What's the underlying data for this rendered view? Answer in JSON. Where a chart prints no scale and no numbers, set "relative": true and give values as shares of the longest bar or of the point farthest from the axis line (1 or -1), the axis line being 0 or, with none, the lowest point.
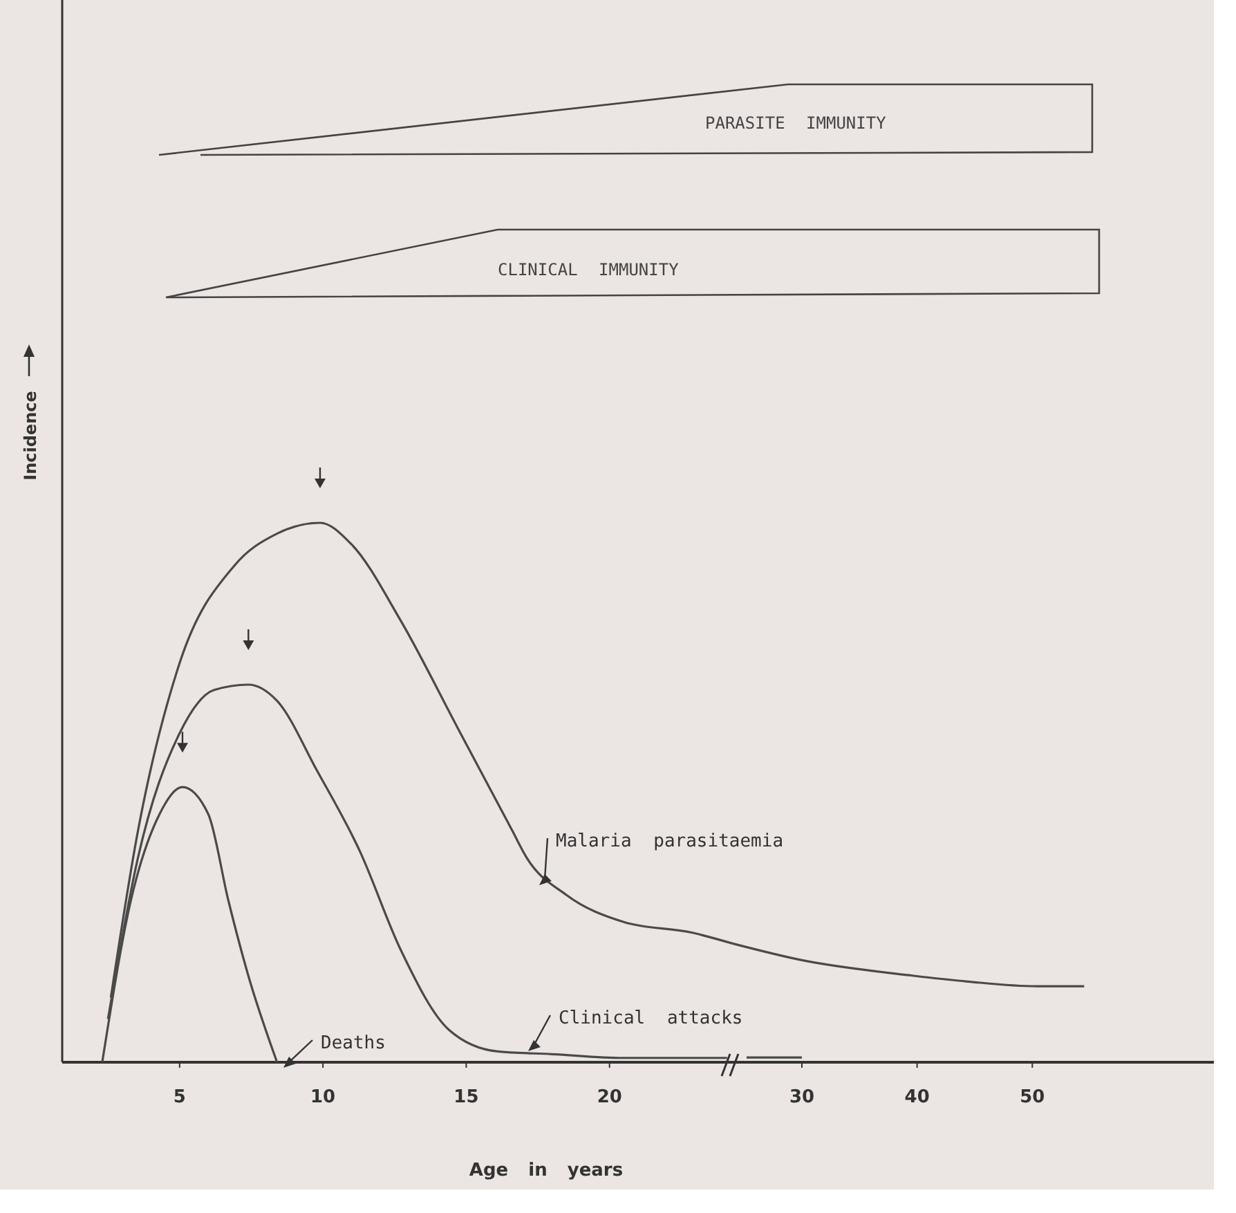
{
  "chart_data": [
    {
      "type": "line",
      "relative": true,
      "xlabel": "Age in years",
      "ylabel": "Incidence",
      "xlim": [
        1,
        24.3
      ],
      "xticks": [
        5,
        10,
        15,
        20
      ],
      "marker": "none",
      "line_style": "solid",
      "annotations": [
        "PARASITE IMMUNITY",
        "CLINICAL IMMUNITY"
      ],
      "series": [
        {
          "name": "Malaria parasitaemia",
          "color": "#4a4a4a",
          "x": [
            2.6,
            3.55,
            5,
            6.9,
            8.4,
            9.9,
            11,
            12.7,
            14.7,
            16.6,
            17.1,
            18.5,
            20.5,
            22.9,
            24.3
          ],
          "values": [
            0.12,
            0.43,
            0.74,
            0.92,
            0.98,
            1,
            0.96,
            0.82,
            0.62,
            0.43,
            0.38,
            0.31,
            0.26,
            0.24,
            0.22
          ]
        },
        {
          "name": "Clinical attacks",
          "color": "#4a4a4a",
          "x": [
            2.5,
            3.55,
            5,
            6.2,
            7.4,
            8.4,
            9.8,
            11.3,
            12.7,
            14.4,
            16.1,
            18,
            20.5,
            24.1
          ],
          "values": [
            0.08,
            0.38,
            0.61,
            0.69,
            0.7,
            0.67,
            0.54,
            0.39,
            0.21,
            0.06,
            0.02,
            0.015,
            0.008,
            0.008
          ]
        },
        {
          "name": "Deaths",
          "color": "#4a4a4a",
          "x": [
            2.3,
            3.3,
            4.3,
            5.1,
            6,
            6.7,
            7.4,
            8.4
          ],
          "values": [
            0,
            0.3,
            0.46,
            0.51,
            0.46,
            0.3,
            0.16,
            0
          ]
        }
      ]
    },
    {
      "type": "line",
      "relative": true,
      "xlim": [
        24,
        66
      ],
      "xticks": [
        30,
        40,
        50
      ],
      "marker": "none",
      "line_style": "solid",
      "series": [
        {
          "color": "#4a4a4a",
          "x": [
            24,
            30,
            39.6,
            44.4,
            50.4,
            54.5
          ],
          "values": [
            1,
            0.86,
            0.73,
            0.68,
            0.64,
            0.64
          ]
        },
        {
          "color": "#4a4a4a",
          "x": [
            25.2,
            30
          ],
          "values": [
            0.04,
            0.04
          ]
        }
      ]
    }
  ]
}
